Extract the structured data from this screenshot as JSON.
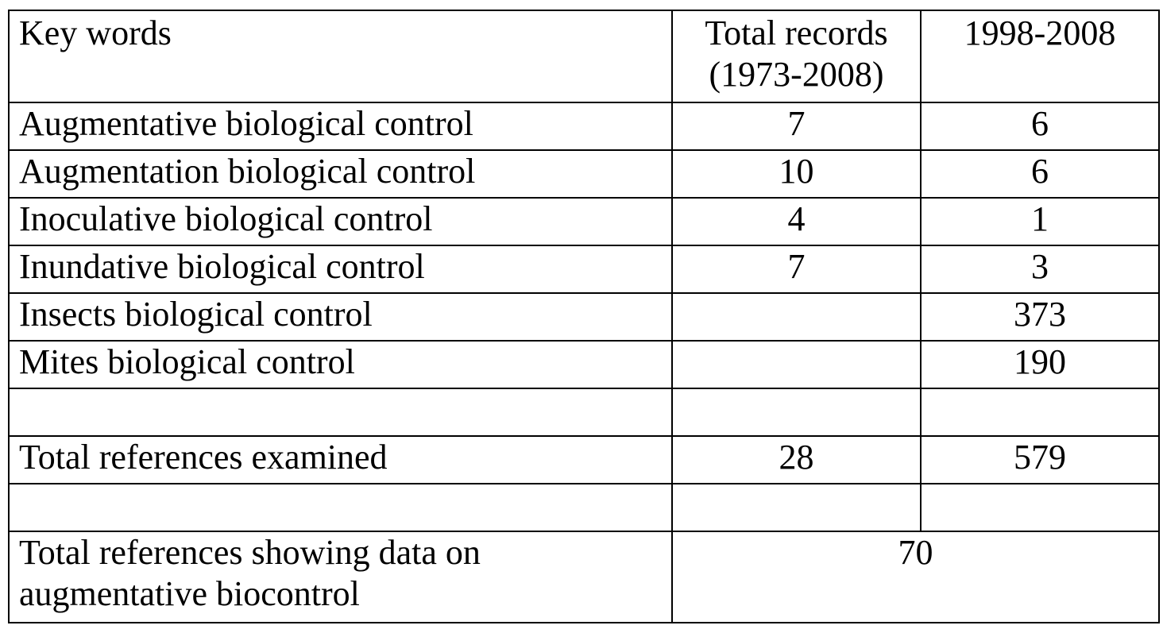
{
  "table": {
    "header": [
      "Key words",
      "Total records (1973-2008)",
      "1998-2008"
    ],
    "rows": [
      [
        "Augmentative biological control",
        7,
        6
      ],
      [
        "Augmentation biological control",
        10,
        6
      ],
      [
        "Inoculative biological control",
        4,
        1
      ],
      [
        "Inundative biological control",
        7,
        3
      ],
      [
        "Insects biological control",
        null,
        373
      ],
      [
        "Mites biological control",
        null,
        190
      ],
      [
        null,
        null,
        null
      ],
      [
        "Total references examined",
        28,
        579
      ],
      [
        null,
        null,
        null
      ],
      [
        "Total references showing data on augmentative biocontrol",
        70
      ]
    ]
  }
}
